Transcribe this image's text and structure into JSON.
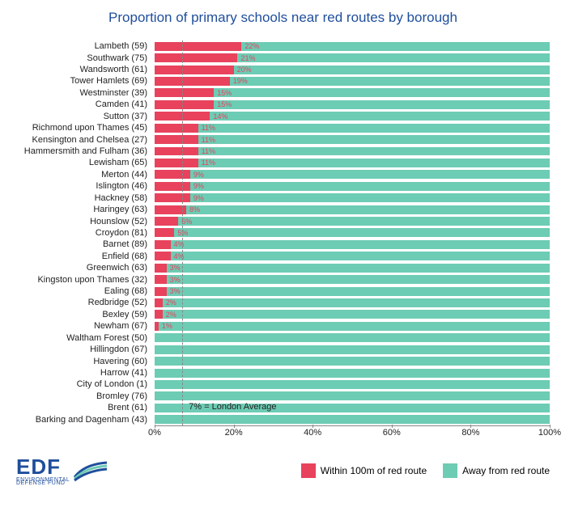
{
  "title": "Proportion of primary schools near red routes by borough",
  "title_color": "#1f4e9c",
  "colors": {
    "red": "#e8425d",
    "teal": "#6dccb4",
    "pct_text": "#e8425d",
    "avg_line": "#888888",
    "label_text": "#222222",
    "axis_text": "#222222",
    "logo_blue": "#1f4e9c",
    "logo_green": "#6dccb4"
  },
  "font_sizes": {
    "title": 17,
    "y_label": 11,
    "pct": 9,
    "x_tick": 11,
    "annot": 11,
    "legend": 12
  },
  "x_axis": {
    "min": 0,
    "max": 100,
    "ticks": [
      0,
      20,
      40,
      60,
      80,
      100
    ],
    "tick_suffix": "%"
  },
  "average": {
    "value": 7,
    "label": "7% = London Average"
  },
  "legend": {
    "red_label": "Within 100m of red route",
    "teal_label": "Away from red route"
  },
  "logo": {
    "letters": "EDF",
    "sub1": "ENVIRONMENTAL",
    "sub2": "DEFENSE FUND"
  },
  "rows": [
    {
      "name": "Lambeth",
      "count": 59,
      "pct": 22
    },
    {
      "name": "Southwark",
      "count": 75,
      "pct": 21
    },
    {
      "name": "Wandsworth",
      "count": 61,
      "pct": 20
    },
    {
      "name": "Tower Hamlets",
      "count": 69,
      "pct": 19
    },
    {
      "name": "Westminster",
      "count": 39,
      "pct": 15
    },
    {
      "name": "Camden",
      "count": 41,
      "pct": 15
    },
    {
      "name": "Sutton",
      "count": 37,
      "pct": 14
    },
    {
      "name": "Richmond upon Thames",
      "count": 45,
      "pct": 11
    },
    {
      "name": "Kensington and Chelsea",
      "count": 27,
      "pct": 11
    },
    {
      "name": "Hammersmith and Fulham",
      "count": 36,
      "pct": 11
    },
    {
      "name": "Lewisham",
      "count": 65,
      "pct": 11
    },
    {
      "name": "Merton",
      "count": 44,
      "pct": 9
    },
    {
      "name": "Islington",
      "count": 46,
      "pct": 9
    },
    {
      "name": "Hackney",
      "count": 58,
      "pct": 9
    },
    {
      "name": "Haringey",
      "count": 63,
      "pct": 8
    },
    {
      "name": "Hounslow",
      "count": 52,
      "pct": 6
    },
    {
      "name": "Croydon",
      "count": 81,
      "pct": 5
    },
    {
      "name": "Barnet",
      "count": 89,
      "pct": 4
    },
    {
      "name": "Enfield",
      "count": 68,
      "pct": 4
    },
    {
      "name": "Greenwich",
      "count": 63,
      "pct": 3
    },
    {
      "name": "Kingston upon Thames",
      "count": 32,
      "pct": 3
    },
    {
      "name": "Ealing",
      "count": 68,
      "pct": 3
    },
    {
      "name": "Redbridge",
      "count": 52,
      "pct": 2
    },
    {
      "name": "Bexley",
      "count": 59,
      "pct": 2
    },
    {
      "name": "Newham",
      "count": 67,
      "pct": 1
    },
    {
      "name": "Waltham Forest",
      "count": 50,
      "pct": 0
    },
    {
      "name": "Hillingdon",
      "count": 67,
      "pct": 0
    },
    {
      "name": "Havering",
      "count": 60,
      "pct": 0
    },
    {
      "name": "Harrow",
      "count": 41,
      "pct": 0
    },
    {
      "name": "City of London",
      "count": 1,
      "pct": 0
    },
    {
      "name": "Bromley",
      "count": 76,
      "pct": 0
    },
    {
      "name": "Brent",
      "count": 61,
      "pct": 0
    },
    {
      "name": "Barking and Dagenham",
      "count": 43,
      "pct": 0
    }
  ]
}
